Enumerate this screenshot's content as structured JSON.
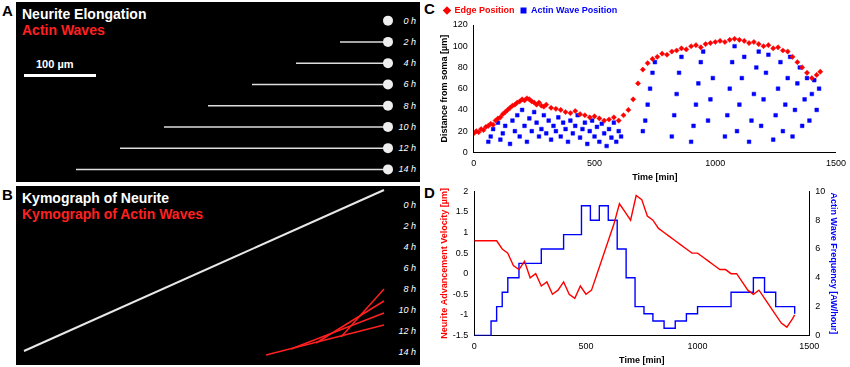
{
  "image_panels": [
    {
      "panel": "A",
      "title": "Neurite Elongation",
      "subtitle": "Actin Waves",
      "scale_bar": "100 µm",
      "time_labels": [
        "0 h",
        "2 h",
        "4 h",
        "6 h",
        "8 h",
        "10 h",
        "12 h",
        "14 h"
      ]
    },
    {
      "panel": "B",
      "title": "Kymograph of Neurite",
      "subtitle": "Kymograph of Actin Waves",
      "time_labels": [
        "0 h",
        "2 h",
        "4 h",
        "6 h",
        "8 h",
        "10 h",
        "12 h",
        "14 h"
      ]
    }
  ],
  "chart_data": [
    {
      "panel": "C",
      "type": "scatter",
      "xlabel": "Time [min]",
      "ylabel": "Distance from soma [µm]",
      "xlim": [
        0,
        1500
      ],
      "xticks": [
        0,
        500,
        1000,
        1500
      ],
      "ylim": [
        0,
        120
      ],
      "yticks": [
        0,
        20,
        40,
        60,
        80,
        100,
        120
      ],
      "grid": false,
      "legend": "top-left",
      "series": [
        {
          "name": "Edge Position",
          "color": "#ff0000",
          "marker": "diamond",
          "x": [
            0,
            10,
            20,
            30,
            40,
            50,
            60,
            70,
            80,
            90,
            100,
            110,
            120,
            130,
            140,
            150,
            160,
            170,
            180,
            190,
            200,
            210,
            220,
            230,
            240,
            250,
            260,
            270,
            280,
            290,
            300,
            320,
            340,
            360,
            380,
            400,
            420,
            440,
            460,
            480,
            500,
            520,
            540,
            560,
            580,
            600,
            620,
            640,
            660,
            680,
            700,
            720,
            740,
            760,
            780,
            800,
            820,
            840,
            860,
            880,
            900,
            920,
            940,
            960,
            980,
            1000,
            1020,
            1040,
            1060,
            1080,
            1100,
            1120,
            1140,
            1160,
            1180,
            1200,
            1220,
            1240,
            1260,
            1280,
            1300,
            1320,
            1340,
            1360,
            1380,
            1400,
            1420,
            1435
          ],
          "values": [
            18,
            20,
            19,
            22,
            21,
            24,
            25,
            27,
            26,
            30,
            32,
            33,
            36,
            38,
            40,
            42,
            44,
            45,
            47,
            48,
            50,
            49,
            51,
            50,
            48,
            47,
            45,
            47,
            44,
            43,
            45,
            42,
            41,
            40,
            38,
            37,
            39,
            36,
            35,
            33,
            34,
            32,
            30,
            31,
            33,
            30,
            35,
            40,
            50,
            65,
            78,
            84,
            88,
            90,
            93,
            92,
            95,
            96,
            98,
            97,
            100,
            101,
            99,
            102,
            103,
            104,
            105,
            104,
            106,
            107,
            106,
            105,
            103,
            104,
            102,
            100,
            101,
            98,
            99,
            96,
            95,
            90,
            85,
            80,
            75,
            70,
            73,
            76
          ]
        },
        {
          "name": "Actin Wave Position",
          "color": "#0000ff",
          "marker": "square",
          "x": [
            60,
            70,
            80,
            100,
            110,
            120,
            130,
            150,
            160,
            170,
            180,
            190,
            200,
            210,
            220,
            230,
            240,
            250,
            260,
            270,
            280,
            290,
            300,
            310,
            320,
            330,
            340,
            350,
            360,
            370,
            380,
            390,
            400,
            410,
            420,
            430,
            440,
            450,
            460,
            470,
            480,
            490,
            500,
            510,
            520,
            530,
            540,
            550,
            560,
            570,
            580,
            590,
            600,
            610,
            700,
            710,
            720,
            730,
            740,
            750,
            820,
            830,
            840,
            850,
            860,
            900,
            910,
            920,
            930,
            940,
            950,
            970,
            980,
            990,
            1040,
            1050,
            1060,
            1070,
            1080,
            1090,
            1100,
            1110,
            1120,
            1140,
            1150,
            1160,
            1170,
            1180,
            1190,
            1200,
            1210,
            1220,
            1240,
            1250,
            1260,
            1270,
            1280,
            1290,
            1300,
            1310,
            1320,
            1330,
            1340,
            1350,
            1360,
            1370,
            1380,
            1390,
            1400,
            1410,
            1420,
            1430
          ],
          "values": [
            10,
            15,
            22,
            28,
            12,
            18,
            25,
            8,
            30,
            20,
            35,
            15,
            40,
            25,
            10,
            32,
            20,
            38,
            28,
            15,
            22,
            35,
            18,
            30,
            12,
            25,
            20,
            33,
            15,
            28,
            22,
            10,
            30,
            18,
            25,
            35,
            14,
            22,
            28,
            8,
            20,
            30,
            15,
            24,
            10,
            27,
            18,
            6,
            22,
            14,
            28,
            10,
            20,
            15,
            20,
            30,
            45,
            60,
            75,
            85,
            15,
            35,
            55,
            75,
            90,
            10,
            25,
            45,
            65,
            85,
            95,
            30,
            50,
            70,
            15,
            35,
            60,
            85,
            100,
            20,
            45,
            70,
            90,
            10,
            30,
            55,
            80,
            95,
            25,
            50,
            75,
            92,
            12,
            35,
            60,
            85,
            20,
            45,
            70,
            90,
            15,
            40,
            65,
            80,
            25,
            50,
            70,
            30,
            55,
            68,
            40,
            60
          ]
        }
      ]
    },
    {
      "panel": "D",
      "type": "line",
      "xlabel": "Time [min]",
      "ylabel": "Neurite Advancement Velocity [µm]",
      "y2label": "Actin Wave Frequency [AW/hour]",
      "xlim": [
        0,
        1500
      ],
      "xticks": [
        0,
        500,
        1000,
        1500
      ],
      "ylim": [
        -1.5,
        2
      ],
      "yticks": [
        -1.5,
        -1,
        -0.5,
        0,
        0.5,
        1,
        1.5,
        2
      ],
      "y2lim": [
        0,
        10
      ],
      "y2ticks": [
        0,
        2,
        4,
        6,
        8,
        10
      ],
      "grid": false,
      "series": [
        {
          "name": "Neurite Advancement Velocity",
          "color": "#ff0000",
          "line_style": "solid",
          "x": [
            0,
            25,
            50,
            75,
            100,
            125,
            150,
            175,
            200,
            225,
            250,
            275,
            300,
            325,
            350,
            375,
            400,
            425,
            450,
            475,
            500,
            525,
            550,
            575,
            600,
            625,
            650,
            675,
            700,
            725,
            750,
            775,
            800,
            825,
            850,
            875,
            900,
            925,
            950,
            975,
            1000,
            1025,
            1050,
            1075,
            1100,
            1125,
            1150,
            1175,
            1200,
            1225,
            1250,
            1275,
            1300,
            1325,
            1350,
            1375,
            1400,
            1425,
            1435
          ],
          "values": [
            0.8,
            0.8,
            0.8,
            0.8,
            0.8,
            0.6,
            0.5,
            0.2,
            0.1,
            0.3,
            -0.1,
            0,
            -0.3,
            -0.2,
            -0.5,
            -0.4,
            -0.2,
            -0.5,
            -0.6,
            -0.3,
            -0.5,
            -0.4,
            0,
            0.4,
            0.8,
            1.2,
            1.7,
            1.5,
            1.3,
            1.9,
            1.8,
            1.4,
            1.3,
            1.1,
            1.0,
            0.9,
            0.8,
            0.7,
            0.6,
            0.5,
            0.5,
            0.4,
            0.3,
            0.2,
            0.1,
            0.1,
            0,
            0,
            -0.2,
            -0.4,
            -0.5,
            -0.4,
            -0.6,
            -0.8,
            -1.0,
            -1.2,
            -1.3,
            -1.1,
            -1.0
          ]
        },
        {
          "name": "Actin Wave Frequency",
          "color": "#0000ff",
          "line_style": "steps",
          "axis": "y2",
          "x": [
            0,
            75,
            100,
            125,
            150,
            200,
            250,
            300,
            350,
            400,
            450,
            480,
            520,
            560,
            600,
            640,
            680,
            720,
            760,
            800,
            850,
            900,
            950,
            1000,
            1050,
            1100,
            1150,
            1200,
            1250,
            1300,
            1350,
            1400,
            1435
          ],
          "values": [
            0,
            1,
            2,
            3,
            4,
            5,
            5,
            6,
            6,
            7,
            7,
            9,
            8,
            9,
            8,
            6,
            4,
            2,
            1.5,
            1,
            0.5,
            1,
            1.5,
            2,
            2,
            2,
            3,
            3,
            4,
            3,
            2,
            2,
            1.5
          ]
        }
      ]
    }
  ]
}
